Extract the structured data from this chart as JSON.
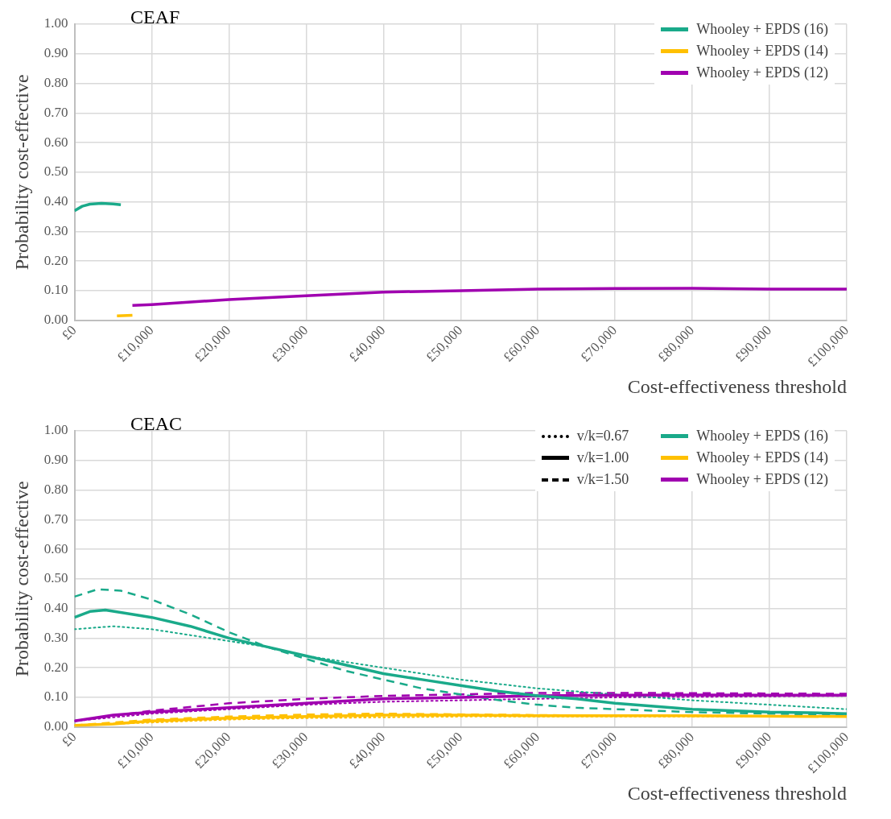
{
  "chart_data": [
    {
      "type": "line",
      "title": "CEAF",
      "xlabel": "Cost-effectiveness threshold",
      "ylabel": "Probability cost-effective",
      "xlim": [
        0,
        100000
      ],
      "ylim": [
        0,
        1
      ],
      "xticks": [
        {
          "value": 0,
          "label": "£0"
        },
        {
          "value": 10000,
          "label": "£10,000"
        },
        {
          "value": 20000,
          "label": "£20,000"
        },
        {
          "value": 30000,
          "label": "£30,000"
        },
        {
          "value": 40000,
          "label": "£40,000"
        },
        {
          "value": 50000,
          "label": "£50,000"
        },
        {
          "value": 60000,
          "label": "£60,000"
        },
        {
          "value": 70000,
          "label": "£70,000"
        },
        {
          "value": 80000,
          "label": "£80,000"
        },
        {
          "value": 90000,
          "label": "£90,000"
        },
        {
          "value": 100000,
          "label": "£100,000"
        }
      ],
      "yticks": [
        {
          "value": 0,
          "label": "0.00"
        },
        {
          "value": 0.1,
          "label": "0.10"
        },
        {
          "value": 0.2,
          "label": "0.20"
        },
        {
          "value": 0.3,
          "label": "0.30"
        },
        {
          "value": 0.4,
          "label": "0.40"
        },
        {
          "value": 0.5,
          "label": "0.50"
        },
        {
          "value": 0.6,
          "label": "0.60"
        },
        {
          "value": 0.7,
          "label": "0.70"
        },
        {
          "value": 0.8,
          "label": "0.80"
        },
        {
          "value": 0.9,
          "label": "0.90"
        },
        {
          "value": 1,
          "label": "1.00"
        }
      ],
      "grid": true,
      "legend": "top right",
      "marker": "none",
      "series": [
        {
          "name": "Whooley + EPDS (16)",
          "color": "#1aaa8a",
          "line_style": "solid",
          "x": [
            0,
            1000,
            2000,
            3500,
            5000,
            6000
          ],
          "values": [
            0.37,
            0.385,
            0.392,
            0.395,
            0.393,
            0.39
          ]
        },
        {
          "name": "Whooley + EPDS (14)",
          "color": "#ffc000",
          "line_style": "solid",
          "x": [
            5500,
            7500
          ],
          "values": [
            0.015,
            0.017
          ]
        },
        {
          "name": "Whooley + EPDS (12)",
          "color": "#a000b0",
          "line_style": "solid",
          "x": [
            7500,
            10000,
            20000,
            30000,
            40000,
            50000,
            60000,
            70000,
            80000,
            90000,
            100000
          ],
          "values": [
            0.05,
            0.053,
            0.07,
            0.083,
            0.095,
            0.1,
            0.105,
            0.107,
            0.108,
            0.105,
            0.105
          ]
        }
      ]
    },
    {
      "type": "line",
      "title": "CEAC",
      "xlabel": "Cost-effectiveness threshold",
      "ylabel": "Probability cost-effective",
      "xlim": [
        0,
        100000
      ],
      "ylim": [
        0,
        1
      ],
      "xticks": [
        {
          "value": 0,
          "label": "£0"
        },
        {
          "value": 10000,
          "label": "£10,000"
        },
        {
          "value": 20000,
          "label": "£20,000"
        },
        {
          "value": 30000,
          "label": "£30,000"
        },
        {
          "value": 40000,
          "label": "£40,000"
        },
        {
          "value": 50000,
          "label": "£50,000"
        },
        {
          "value": 60000,
          "label": "£60,000"
        },
        {
          "value": 70000,
          "label": "£70,000"
        },
        {
          "value": 80000,
          "label": "£80,000"
        },
        {
          "value": 90000,
          "label": "£90,000"
        },
        {
          "value": 100000,
          "label": "£100,000"
        }
      ],
      "yticks": [
        {
          "value": 0,
          "label": "0.00"
        },
        {
          "value": 0.1,
          "label": "0.10"
        },
        {
          "value": 0.2,
          "label": "0.20"
        },
        {
          "value": 0.3,
          "label": "0.30"
        },
        {
          "value": 0.4,
          "label": "0.40"
        },
        {
          "value": 0.5,
          "label": "0.50"
        },
        {
          "value": 0.6,
          "label": "0.60"
        },
        {
          "value": 0.7,
          "label": "0.70"
        },
        {
          "value": 0.8,
          "label": "0.80"
        },
        {
          "value": 0.9,
          "label": "0.90"
        },
        {
          "value": 1,
          "label": "1.00"
        }
      ],
      "grid": true,
      "legend": "top right",
      "marker": "none",
      "series": [
        {
          "name": "v/k=0.67",
          "color": "#000000",
          "line_style": "dotted"
        },
        {
          "name": "v/k=1.00",
          "color": "#000000",
          "line_style": "solid"
        },
        {
          "name": "v/k=1.50",
          "color": "#000000",
          "line_style": "dashed"
        },
        {
          "name": "Whooley + EPDS (16)",
          "color": "#1aaa8a",
          "line_style": "solid",
          "x": [
            0,
            2000,
            4000,
            10000,
            15000,
            20000,
            25000,
            30000,
            35000,
            40000,
            45000,
            50000,
            55000,
            60000,
            65000,
            70000,
            75000,
            80000,
            85000,
            90000,
            95000,
            100000
          ],
          "values": [
            0.37,
            0.39,
            0.395,
            0.37,
            0.34,
            0.3,
            0.27,
            0.24,
            0.21,
            0.18,
            0.16,
            0.14,
            0.12,
            0.105,
            0.095,
            0.08,
            0.07,
            0.06,
            0.055,
            0.05,
            0.048,
            0.045
          ]
        },
        {
          "name": "Whooley + EPDS (14)",
          "color": "#ffc000",
          "line_style": "solid",
          "x": [
            0,
            5000,
            10000,
            20000,
            30000,
            40000,
            50000,
            60000,
            80000,
            100000
          ],
          "values": [
            0.005,
            0.01,
            0.02,
            0.03,
            0.035,
            0.04,
            0.04,
            0.038,
            0.038,
            0.035
          ]
        },
        {
          "name": "Whooley + EPDS (12)",
          "color": "#a000b0",
          "line_style": "solid",
          "x": [
            0,
            5000,
            10000,
            20000,
            30000,
            40000,
            50000,
            60000,
            70000,
            80000,
            90000,
            100000
          ],
          "values": [
            0.02,
            0.04,
            0.05,
            0.065,
            0.08,
            0.095,
            0.1,
            0.105,
            0.107,
            0.108,
            0.107,
            0.107
          ]
        },
        {
          "color": "#1aaa8a",
          "line_style": "dashed",
          "x": [
            0,
            3000,
            6000,
            10000,
            15000,
            20000,
            25000,
            30000,
            35000,
            40000,
            45000,
            50000,
            55000,
            60000,
            65000,
            70000,
            80000,
            90000,
            100000
          ],
          "values": [
            0.44,
            0.465,
            0.46,
            0.43,
            0.38,
            0.32,
            0.27,
            0.23,
            0.19,
            0.16,
            0.13,
            0.11,
            0.09,
            0.075,
            0.065,
            0.06,
            0.05,
            0.045,
            0.04
          ]
        },
        {
          "color": "#1aaa8a",
          "line_style": "dotted",
          "x": [
            0,
            5000,
            10000,
            15000,
            20000,
            25000,
            30000,
            35000,
            40000,
            45000,
            50000,
            55000,
            60000,
            65000,
            70000,
            80000,
            90000,
            100000
          ],
          "values": [
            0.33,
            0.34,
            0.33,
            0.31,
            0.29,
            0.27,
            0.24,
            0.22,
            0.2,
            0.18,
            0.16,
            0.145,
            0.13,
            0.12,
            0.11,
            0.09,
            0.075,
            0.06
          ]
        },
        {
          "color": "#a000b0",
          "line_style": "dashed",
          "x": [
            0,
            10000,
            20000,
            30000,
            40000,
            50000,
            60000,
            70000,
            100000
          ],
          "values": [
            0.02,
            0.055,
            0.08,
            0.095,
            0.105,
            0.11,
            0.115,
            0.115,
            0.112
          ]
        },
        {
          "color": "#a000b0",
          "line_style": "dotted",
          "x": [
            0,
            10000,
            20000,
            30000,
            40000,
            50000,
            60000,
            70000,
            100000
          ],
          "values": [
            0.02,
            0.045,
            0.06,
            0.075,
            0.085,
            0.09,
            0.095,
            0.1,
            0.105
          ]
        },
        {
          "color": "#ffc000",
          "line_style": "dashed",
          "x": [
            0,
            10000,
            20000,
            30000,
            40000,
            60000,
            100000
          ],
          "values": [
            0.005,
            0.025,
            0.035,
            0.042,
            0.045,
            0.04,
            0.035
          ]
        },
        {
          "color": "#ffc000",
          "line_style": "dotted",
          "x": [
            0,
            10000,
            20000,
            30000,
            50000,
            100000
          ],
          "values": [
            0.005,
            0.015,
            0.025,
            0.03,
            0.035,
            0.035
          ]
        }
      ]
    }
  ]
}
